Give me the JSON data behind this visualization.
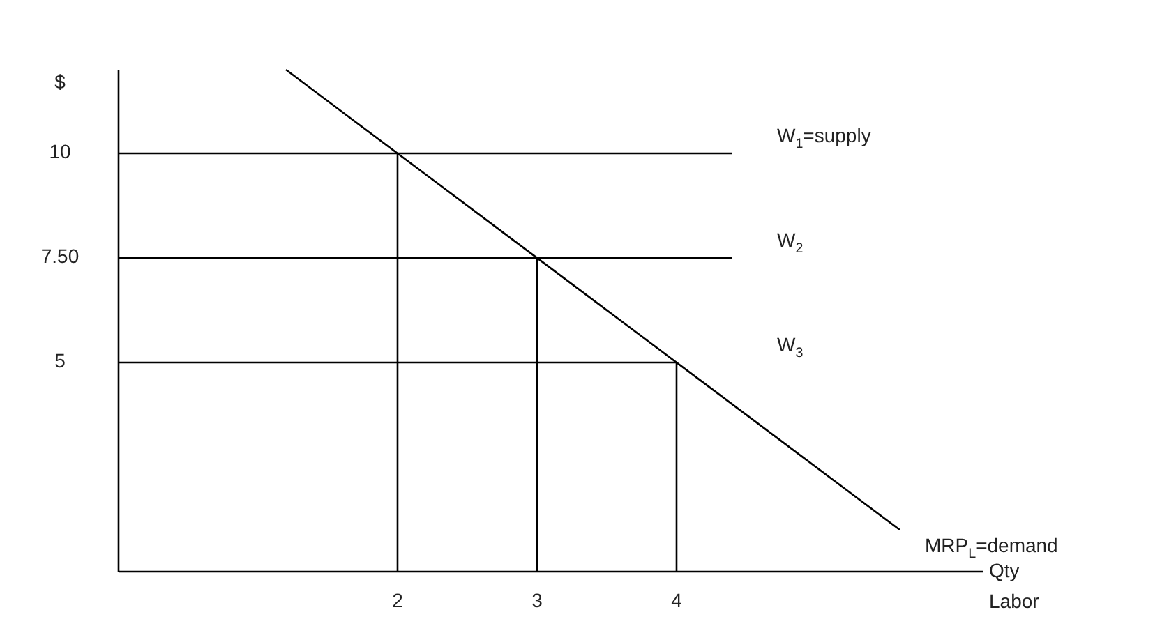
{
  "chart_data": {
    "type": "line",
    "ylabel": "$",
    "xlabel": "Qty Labor",
    "xlim": [
      0,
      6.2
    ],
    "ylim": [
      0,
      12
    ],
    "xticks": [
      2,
      3,
      4
    ],
    "yticks": [
      {
        "value": 5,
        "label": "5"
      },
      {
        "value": 7.5,
        "label": "7.50"
      },
      {
        "value": 10,
        "label": "10"
      }
    ],
    "grid": false,
    "marker": "none",
    "line_style": "solid",
    "series": [
      {
        "name": "MRP$_{L}$=demand",
        "color": "#000000",
        "x": [
          1.2,
          5.6
        ],
        "values": [
          12,
          1
        ]
      },
      {
        "name": "W$_{1}$=supply",
        "color": "#000000",
        "x": [
          0,
          4.4
        ],
        "values": [
          10,
          10
        ]
      },
      {
        "name": "W$_{2}$",
        "color": "#000000",
        "x": [
          0,
          4.4
        ],
        "values": [
          7.5,
          7.5
        ]
      },
      {
        "name": "W$_{3}$",
        "color": "#000000",
        "x": [
          0,
          4
        ],
        "values": [
          5,
          5
        ]
      },
      {
        "color": "#000000",
        "x": [
          2,
          2
        ],
        "values": [
          0,
          10
        ]
      },
      {
        "color": "#000000",
        "x": [
          3,
          3
        ],
        "values": [
          0,
          7.5
        ]
      },
      {
        "color": "#000000",
        "x": [
          4,
          4
        ],
        "values": [
          0,
          5
        ]
      }
    ]
  }
}
